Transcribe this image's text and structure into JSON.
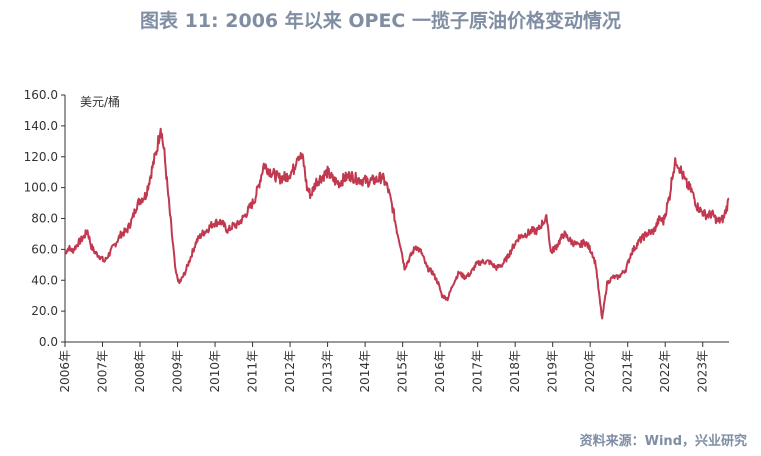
{
  "title": "图表 11: 2006 年以来 OPEC 一揽子原油价格变动情况",
  "source": "资料来源：Wind，兴业研究",
  "chart_data": {
    "type": "line",
    "ylabel": "美元/桶",
    "ylim": [
      0,
      160
    ],
    "yticks": [
      "160.0",
      "140.0",
      "120.0",
      "100.0",
      "80.0",
      "60.0",
      "40.0",
      "20.0",
      "0.0"
    ],
    "xticks": [
      "2006年",
      "2007年",
      "2008年",
      "2009年",
      "2010年",
      "2011年",
      "2012年",
      "2013年",
      "2014年",
      "2015年",
      "2016年",
      "2017年",
      "2018年",
      "2019年",
      "2020年",
      "2021年",
      "2022年",
      "2023年"
    ],
    "xlim": [
      2006.0,
      2023.7
    ],
    "color": "#c0394f",
    "series": [
      {
        "x": [
          2006.0,
          2006.1,
          2006.2,
          2006.35,
          2006.5,
          2006.6,
          2006.7,
          2006.8,
          2006.95,
          2007.05,
          2007.2,
          2007.35,
          2007.5,
          2007.65,
          2007.8,
          2007.9,
          2008.0,
          2008.15,
          2008.3,
          2008.45,
          2008.55,
          2008.65,
          2008.75,
          2008.85,
          2008.95,
          2009.05,
          2009.2,
          2009.35,
          2009.5,
          2009.65,
          2009.8,
          2009.95,
          2010.15,
          2010.35,
          2010.45,
          2010.6,
          2010.8,
          2010.95,
          2011.05,
          2011.15,
          2011.3,
          2011.5,
          2011.7,
          2011.9,
          2012.1,
          2012.2,
          2012.35,
          2012.45,
          2012.55,
          2012.7,
          2012.9,
          2013.0,
          2013.15,
          2013.3,
          2013.45,
          2013.6,
          2013.75,
          2013.9,
          2014.1,
          2014.3,
          2014.45,
          2014.6,
          2014.75,
          2014.85,
          2014.95,
          2015.05,
          2015.2,
          2015.35,
          2015.5,
          2015.65,
          2015.8,
          2015.95,
          2016.05,
          2016.2,
          2016.35,
          2016.5,
          2016.65,
          2016.8,
          2016.95,
          2017.1,
          2017.3,
          2017.5,
          2017.65,
          2017.8,
          2017.95,
          2018.1,
          2018.3,
          2018.45,
          2018.6,
          2018.75,
          2018.85,
          2018.95,
          2019.1,
          2019.3,
          2019.5,
          2019.7,
          2019.85,
          2019.95,
          2020.05,
          2020.15,
          2020.25,
          2020.32,
          2020.45,
          2020.6,
          2020.75,
          2020.95,
          2021.1,
          2021.3,
          2021.5,
          2021.7,
          2021.85,
          2021.95,
          2022.05,
          2022.12,
          2022.2,
          2022.3,
          2022.4,
          2022.55,
          2022.7,
          2022.85,
          2022.95,
          2023.1,
          2023.25,
          2023.4,
          2023.55,
          2023.65,
          2023.7
        ],
        "y": [
          58,
          61,
          59,
          64,
          68,
          72,
          62,
          58,
          55,
          52,
          58,
          64,
          70,
          72,
          80,
          88,
          92,
          95,
          110,
          125,
          140,
          122,
          95,
          70,
          45,
          38,
          45,
          55,
          65,
          70,
          73,
          77,
          78,
          72,
          75,
          76,
          82,
          88,
          92,
          100,
          115,
          110,
          106,
          107,
          112,
          122,
          118,
          100,
          95,
          104,
          108,
          110,
          105,
          103,
          106,
          108,
          106,
          105,
          104,
          105,
          107,
          100,
          85,
          72,
          62,
          48,
          55,
          62,
          58,
          48,
          45,
          38,
          30,
          28,
          38,
          45,
          42,
          44,
          50,
          52,
          52,
          48,
          50,
          55,
          62,
          68,
          70,
          72,
          72,
          78,
          80,
          58,
          62,
          70,
          65,
          62,
          65,
          62,
          58,
          50,
          28,
          15,
          38,
          42,
          42,
          47,
          58,
          65,
          70,
          72,
          80,
          78,
          88,
          95,
          110,
          118,
          112,
          103,
          98,
          88,
          85,
          82,
          83,
          78,
          80,
          88,
          93
        ]
      }
    ]
  }
}
